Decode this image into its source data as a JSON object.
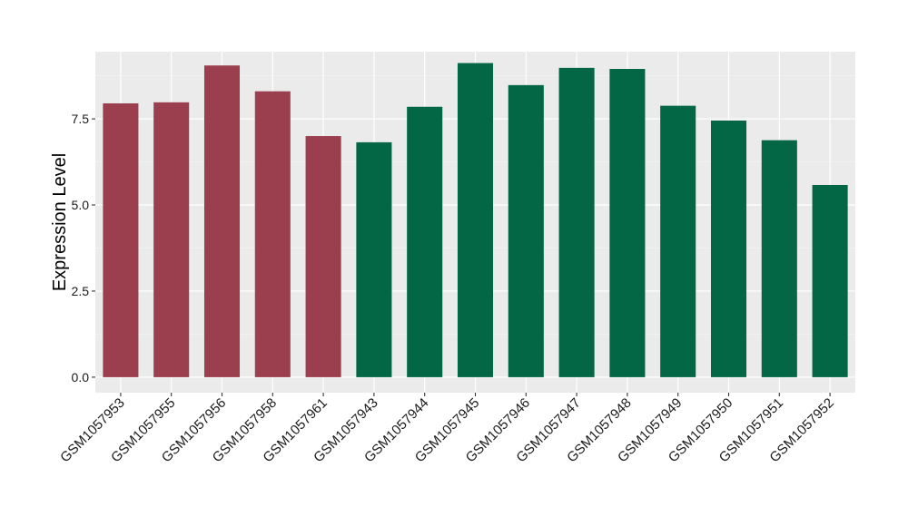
{
  "chart_data": {
    "type": "bar",
    "title": "",
    "xlabel": "",
    "ylabel": "Expression Level",
    "ylim": [
      -0.45,
      9.45
    ],
    "yticks": [
      0.0,
      2.5,
      5.0,
      7.5
    ],
    "ytick_labels": [
      "0.0",
      "2.5",
      "5.0",
      "7.5"
    ],
    "grid": true,
    "legend": "none",
    "categories": [
      "GSM1057953",
      "GSM1057955",
      "GSM1057956",
      "GSM1057958",
      "GSM1057961",
      "GSM1057943",
      "GSM1057944",
      "GSM1057945",
      "GSM1057946",
      "GSM1057947",
      "GSM1057948",
      "GSM1057949",
      "GSM1057950",
      "GSM1057951",
      "GSM1057952"
    ],
    "values": [
      7.95,
      7.98,
      9.05,
      8.3,
      7.0,
      6.82,
      7.85,
      9.12,
      8.48,
      8.98,
      8.95,
      7.88,
      7.45,
      6.88,
      5.58
    ],
    "bar_colors": [
      "#9b3f4e",
      "#9b3f4e",
      "#9b3f4e",
      "#9b3f4e",
      "#9b3f4e",
      "#036645",
      "#036645",
      "#036645",
      "#036645",
      "#036645",
      "#036645",
      "#036645",
      "#036645",
      "#036645",
      "#036645"
    ],
    "colors": {
      "panel_background": "#ebebeb",
      "grid_major": "#ffffff",
      "grid_minor": "#f5f5f5",
      "tick_mark": "#333333"
    }
  }
}
